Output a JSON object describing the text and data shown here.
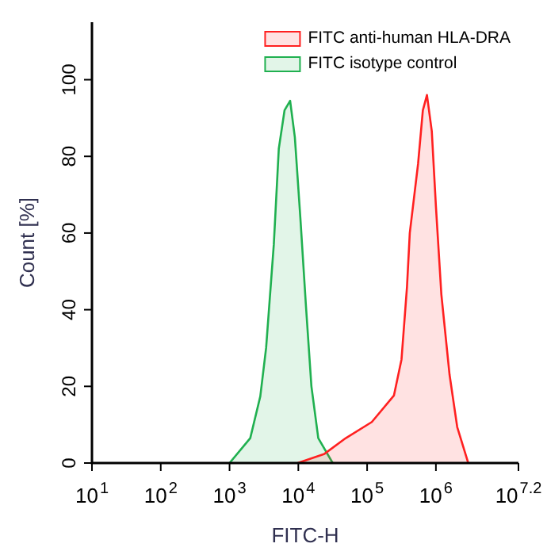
{
  "chart_data": {
    "type": "area",
    "xlabel": "FITC-H",
    "ylabel": "Count [%]",
    "log": "x",
    "xlim": [
      10,
      15848932
    ],
    "xticks": [
      {
        "value": 10,
        "label": "10$^{1}$"
      },
      {
        "value": 100,
        "label": "10$^{2}$"
      },
      {
        "value": 1000,
        "label": "10$^{3}$"
      },
      {
        "value": 10000,
        "label": "10$^{4}$"
      },
      {
        "value": 100000,
        "label": "10$^{5}$"
      },
      {
        "value": 1000000,
        "label": "10$^{6}$"
      },
      {
        "value": 15848932,
        "label": "10$^{7.2}$"
      }
    ],
    "ylim": [
      0,
      115
    ],
    "yticks": [
      0,
      20,
      40,
      60,
      80,
      100
    ],
    "grid": false,
    "legend": "top right",
    "marker": "none",
    "line_style": "solid",
    "series": [
      {
        "name": "FITC anti-human HLA-DRA",
        "color": "#ff2020",
        "x": [
          9800,
          24000,
          49000,
          117000,
          245000,
          316000,
          380000,
          417000,
          550000,
          646000,
          741000,
          871000,
          1000000,
          1200000,
          1580000,
          2040000,
          2950000
        ],
        "values": [
          0,
          2.4,
          6.5,
          10.7,
          17.6,
          27,
          46,
          60,
          78,
          92,
          96,
          86.6,
          67,
          44,
          23,
          9.4,
          0
        ]
      },
      {
        "name": "FITC isotype control",
        "color": "#20b050",
        "x": [
          1000,
          2000,
          2800,
          3400,
          4400,
          5200,
          6300,
          7600,
          8900,
          10700,
          12900,
          15500,
          19500,
          31600
        ],
        "values": [
          0,
          6.5,
          17.4,
          30,
          57,
          82,
          92,
          94.5,
          85,
          64,
          41,
          20,
          6.5,
          0
        ]
      }
    ]
  }
}
